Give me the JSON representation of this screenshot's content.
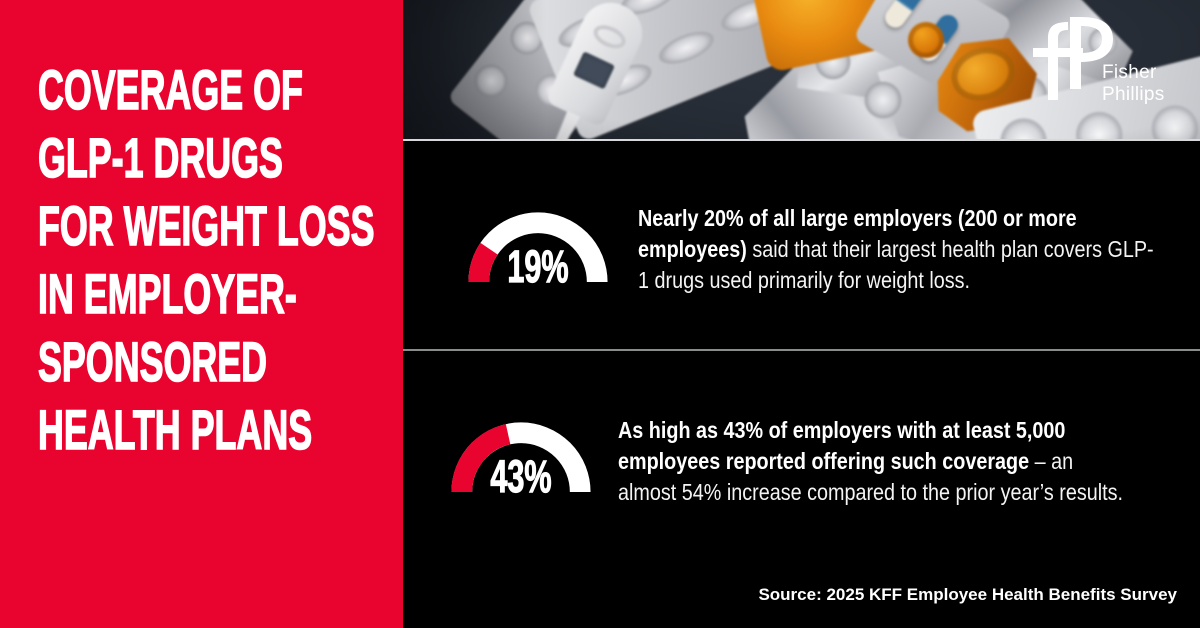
{
  "brand": {
    "monogram": "fP",
    "name_line1": "Fisher",
    "name_line2": "Phillips"
  },
  "title": {
    "lines": [
      "COVERAGE OF",
      "GLP-1 DRUGS",
      "FOR WEIGHT LOSS",
      "IN EMPLOYER-",
      "SPONSORED",
      "HEALTH PLANS"
    ]
  },
  "chart_data": [
    {
      "type": "gauge",
      "label": "19%",
      "value": 19,
      "min": 0,
      "max": 100,
      "fill_color": "#E9032F",
      "track_color": "#FFFFFF"
    },
    {
      "type": "gauge",
      "label": "43%",
      "value": 43,
      "min": 0,
      "max": 100,
      "fill_color": "#E9032F",
      "track_color": "#FFFFFF"
    }
  ],
  "stats": [
    {
      "text_bold": "Nearly 20% of all large employers (200 or more employees)",
      "text_regular": " said that their largest health plan covers GLP-1 drugs used primarily for weight loss."
    },
    {
      "text_bold": "As high as 43% of employers with at least 5,000 employees reported offering such coverage",
      "text_regular": " – an almost 54% increase compared to the prior year’s results."
    }
  ],
  "source": {
    "text": "Source: 2025 KFF Employee Health Benefits Survey"
  },
  "colors": {
    "brand_red": "#E9032F",
    "panel_black": "#000000",
    "gauge_track": "#FFFFFF",
    "text_white": "#FFFFFF",
    "divider_light": "#D8D8D8",
    "divider_gray": "#8A8B8B"
  }
}
